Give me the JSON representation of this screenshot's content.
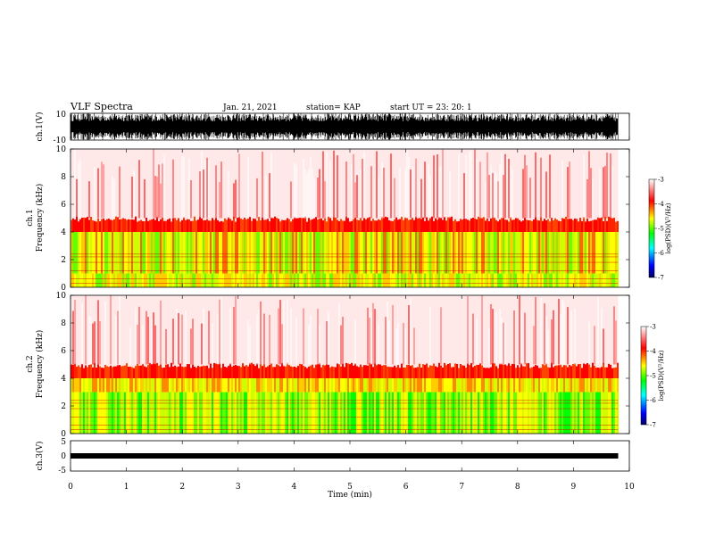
{
  "header": {
    "title": "VLF Spectra",
    "date": "Jan. 21, 2021",
    "station": "station= KAP",
    "start": "start  UT  =   23: 20: 1"
  },
  "chart_data": [
    {
      "type": "line",
      "name": "ch.1 waveform",
      "ylabel": "ch.1(V)",
      "ylim": [
        -10,
        10
      ],
      "yticks": [
        "10",
        "-10"
      ],
      "xlim": [
        0,
        10
      ],
      "data_extent": [
        0,
        9.8
      ]
    },
    {
      "type": "heatmap",
      "name": "ch.1 spectrogram",
      "ylabel_top": "ch.1",
      "ylabel": "Frequency  (kHz)",
      "ylim": [
        0,
        10
      ],
      "yticks": [
        "0",
        "2",
        "4",
        "6",
        "8",
        "10"
      ],
      "xlim": [
        0,
        10
      ],
      "data_extent": [
        0,
        9.8
      ],
      "colorbar": {
        "label": "log(PSD)(V²/Hz)",
        "range": [
          -7,
          -3
        ],
        "ticks": [
          "-3",
          "-4",
          "-5",
          "-6",
          "-7"
        ]
      },
      "bands_khz": [
        {
          "from": 0,
          "to": 1.0,
          "level": "green-yellow"
        },
        {
          "from": 1.0,
          "to": 4.0,
          "level": "yellow-green"
        },
        {
          "from": 4.0,
          "to": 5.0,
          "level": "red"
        },
        {
          "from": 5.0,
          "to": 10,
          "level": "sparse red"
        }
      ]
    },
    {
      "type": "heatmap",
      "name": "ch.2 spectrogram",
      "ylabel_top": "ch.2",
      "ylabel": "Frequency  (kHz)",
      "ylim": [
        0,
        10
      ],
      "yticks": [
        "0",
        "2",
        "4",
        "6",
        "8",
        "10"
      ],
      "xlim": [
        0,
        10
      ],
      "data_extent": [
        0,
        9.8
      ],
      "colorbar": {
        "label": "log(PSD)(V²/Hz)",
        "range": [
          -7,
          -3
        ],
        "ticks": [
          "-3",
          "-4",
          "-5",
          "-6",
          "-7"
        ]
      },
      "bands_khz": [
        {
          "from": 0,
          "to": 3.0,
          "level": "green"
        },
        {
          "from": 3.0,
          "to": 4.0,
          "level": "yellow"
        },
        {
          "from": 4.0,
          "to": 5.0,
          "level": "red"
        },
        {
          "from": 5.0,
          "to": 10,
          "level": "sparse red"
        }
      ]
    },
    {
      "type": "line",
      "name": "ch.3 waveform",
      "ylabel": "ch.3(V)",
      "ylim": [
        -5,
        5
      ],
      "yticks": [
        "5",
        "0",
        "-5"
      ],
      "xlim": [
        0,
        10
      ],
      "data_extent": [
        0,
        9.8
      ],
      "xlabel": "Time  (min)",
      "xticks": [
        "0",
        "1",
        "2",
        "3",
        "4",
        "5",
        "6",
        "7",
        "8",
        "9",
        "10"
      ]
    }
  ],
  "colors": {
    "high": "#ff0000",
    "mid": "#ffff00",
    "low": "#00ff00",
    "colormap": [
      "#000080",
      "#0000ff",
      "#00ffff",
      "#00ff00",
      "#ffff00",
      "#ff0000",
      "#ffffff"
    ]
  }
}
